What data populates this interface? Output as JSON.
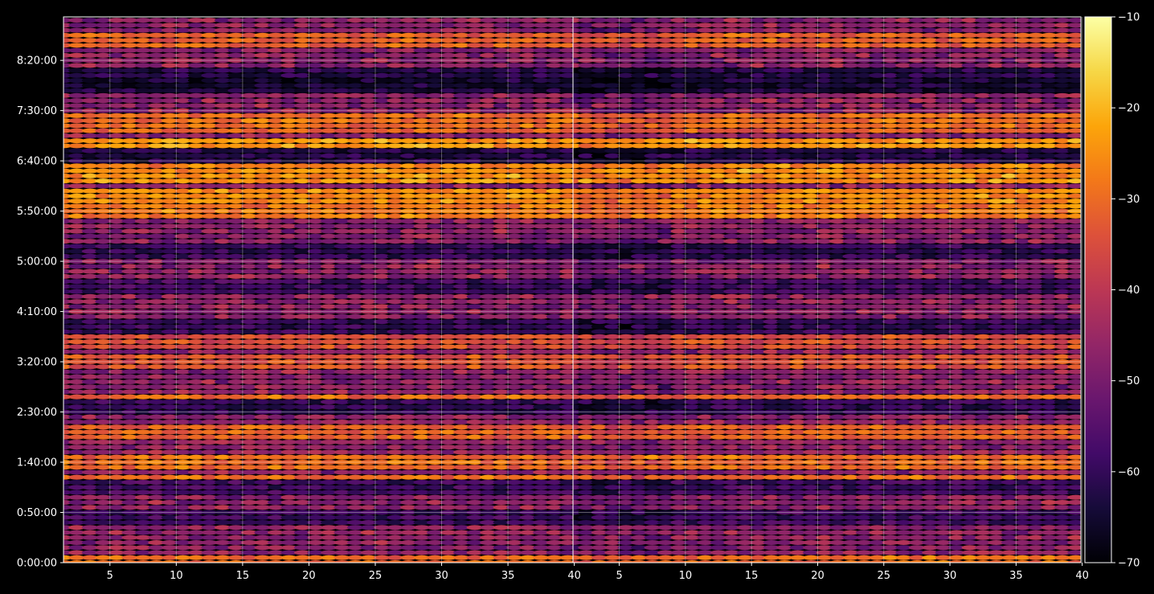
{
  "chart_data": {
    "type": "heatmap",
    "panels": [
      {
        "name": "",
        "xlim": [
          1.5,
          39.9
        ],
        "xticks": [
          5,
          10,
          15,
          20,
          25,
          30,
          35,
          40
        ],
        "xtick_labels": [
          "5",
          "10",
          "15",
          "20",
          "25",
          "30",
          "35",
          "40"
        ],
        "ylim_seconds": [
          0,
          32600
        ],
        "yticks": [
          "0:00:00",
          "0:50:00",
          "1:40:00",
          "2:30:00",
          "3:20:00",
          "4:10:00",
          "5:00:00",
          "5:50:00",
          "6:40:00",
          "7:30:00",
          "8:20:00"
        ],
        "grid": true
      },
      {
        "name": "",
        "xlim": [
          1.5,
          39.9
        ],
        "xticks": [
          5,
          10,
          15,
          20,
          25,
          30,
          35,
          40
        ],
        "xtick_labels": [
          "5",
          "10",
          "15",
          "20",
          "25",
          "30",
          "35",
          "40"
        ],
        "ylim_seconds": [
          0,
          32600
        ],
        "yticks": [],
        "grid": true
      }
    ],
    "z_range": [
      -70,
      -10
    ],
    "colormap": "inferno",
    "colorbar": {
      "ticks": [
        -10,
        -20,
        -30,
        -40,
        -50,
        -60,
        -70
      ],
      "tick_labels": [
        "−10",
        "−20",
        "−30",
        "−40",
        "−50",
        "−60",
        "−70"
      ]
    },
    "x_columns": [
      2,
      40
    ],
    "row_step_seconds": 300,
    "bright_rows": [
      {
        "time": "0:00:00",
        "level": -30
      },
      {
        "time": "1:20:00",
        "level": -30
      },
      {
        "time": "1:40:00",
        "level": -30
      },
      {
        "time": "2:10:00",
        "level": -32
      },
      {
        "time": "2:40:00",
        "level": -30
      },
      {
        "time": "3:20:00",
        "level": -34
      },
      {
        "time": "3:40:00",
        "level": -35
      },
      {
        "time": "5:50:00",
        "level": -28
      },
      {
        "time": "6:05:00",
        "level": -26
      },
      {
        "time": "6:25:00",
        "level": -25
      },
      {
        "time": "6:30:00",
        "level": -27
      },
      {
        "time": "6:55:00",
        "level": -24
      },
      {
        "time": "7:15:00",
        "level": -32
      },
      {
        "time": "7:20:00",
        "level": -30
      },
      {
        "time": "8:40:00",
        "level": -32
      }
    ],
    "dark_rows": [
      {
        "time": "0:45:00",
        "level": -58
      },
      {
        "time": "1:15:00",
        "level": -58
      },
      {
        "time": "2:35:00",
        "level": -60
      },
      {
        "time": "3:55:00",
        "level": -60
      },
      {
        "time": "4:35:00",
        "level": -58
      },
      {
        "time": "5:10:00",
        "level": -60
      },
      {
        "time": "6:45:00",
        "level": -62
      },
      {
        "time": "7:55:00",
        "level": -64
      },
      {
        "time": "8:05:00",
        "level": -62
      }
    ]
  }
}
